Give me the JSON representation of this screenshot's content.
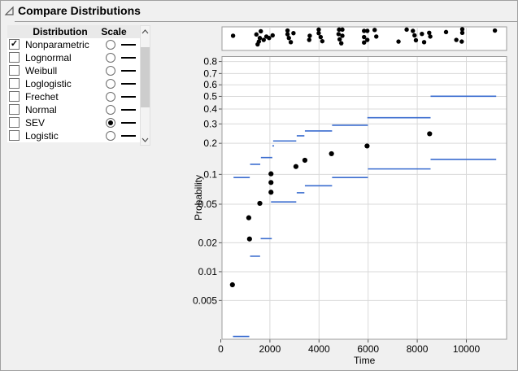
{
  "window": {
    "title": "Compare Distributions"
  },
  "panel": {
    "headers": [
      "Distribution",
      "Scale"
    ],
    "rows": [
      {
        "label": "Nonparametric",
        "checked": true,
        "scale_selected": false
      },
      {
        "label": "Lognormal",
        "checked": false,
        "scale_selected": false
      },
      {
        "label": "Weibull",
        "checked": false,
        "scale_selected": false
      },
      {
        "label": "Loglogistic",
        "checked": false,
        "scale_selected": false
      },
      {
        "label": "Frechet",
        "checked": false,
        "scale_selected": false
      },
      {
        "label": "Normal",
        "checked": false,
        "scale_selected": false
      },
      {
        "label": "SEV",
        "checked": false,
        "scale_selected": true
      },
      {
        "label": "Logistic",
        "checked": false,
        "scale_selected": false
      }
    ],
    "checkmark_glyph": "✓"
  },
  "colors": {
    "accent_blue": "#3a6ccf",
    "point_black": "#000000",
    "grid": "#d9d9d9",
    "frame": "#9b9b9b",
    "tick": "#555555",
    "panel_bg": "#f0f0f0",
    "plot_bg": "#ffffff"
  },
  "chart_data": {
    "type": "scatter",
    "subtype": "nonparametric-probability-plot",
    "xlabel": "Time",
    "ylabel": "Probability",
    "grid": true,
    "x_axis": {
      "min": 0,
      "max": 11700,
      "ticks": [
        0,
        2000,
        4000,
        6000,
        8000,
        10000
      ]
    },
    "y_axis": {
      "scale": "SEV probability",
      "tick_values": [
        0.8,
        0.7,
        0.6,
        0.5,
        0.4,
        0.3,
        0.2,
        0.1,
        0.05,
        0.02,
        0.01,
        0.005
      ],
      "tick_labels": [
        "0.8",
        "0.7",
        "0.6",
        "0.5",
        "0.4",
        "0.3",
        "0.2",
        "0.1",
        "0.05",
        "0.02",
        "0.01",
        "0.005"
      ],
      "min": 0.002,
      "max": 0.84
    },
    "points": [
      [
        474,
        0.0073
      ],
      [
        1140,
        0.0363
      ],
      [
        1170,
        0.0219
      ],
      [
        1590,
        0.051
      ],
      [
        2045,
        0.1013
      ],
      [
        2045,
        0.083
      ],
      [
        2045,
        0.0662
      ],
      [
        3060,
        0.1196
      ],
      [
        3425,
        0.1377
      ],
      [
        4508,
        0.1594
      ],
      [
        5957,
        0.1887
      ],
      [
        8504,
        0.2448
      ]
    ],
    "step_segments_upper": [
      [
        520,
        1180,
        0.093
      ],
      [
        1193,
        1608,
        0.1258
      ],
      [
        1634,
        2099,
        0.1463
      ],
      [
        2100,
        2170,
        0.1893
      ],
      [
        2132,
        3073,
        0.2104
      ],
      [
        3093,
        3404,
        0.2346
      ],
      [
        3425,
        4532,
        0.2599
      ],
      [
        4532,
        5991,
        0.2918
      ],
      [
        5968,
        8543,
        0.3392
      ],
      [
        8543,
        11215,
        0.5013
      ]
    ],
    "step_segments_lower": [
      [
        497,
        1160,
        0.0021
      ],
      [
        1193,
        1601,
        0.0145
      ],
      [
        1624,
        2078,
        0.0221
      ],
      [
        2045,
        3073,
        0.0527
      ],
      [
        3093,
        3404,
        0.0654
      ],
      [
        3425,
        4532,
        0.077
      ],
      [
        4532,
        5991,
        0.093
      ],
      [
        5991,
        8543,
        0.1133
      ],
      [
        8543,
        11215,
        0.1403
      ]
    ],
    "event_strip_points": [
      [
        500,
        0.39
      ],
      [
        1450,
        0.32
      ],
      [
        1630,
        0.15
      ],
      [
        1590,
        0.51
      ],
      [
        1550,
        0.7
      ],
      [
        1500,
        0.85
      ],
      [
        1747,
        0.61
      ],
      [
        1857,
        0.43
      ],
      [
        1967,
        0.51
      ],
      [
        2112,
        0.37
      ],
      [
        2718,
        0.11
      ],
      [
        2718,
        0.31
      ],
      [
        2774,
        0.51
      ],
      [
        2851,
        0.73
      ],
      [
        2960,
        0.25
      ],
      [
        3623,
        0.39
      ],
      [
        3601,
        0.61
      ],
      [
        3988,
        0.06
      ],
      [
        3988,
        0.25
      ],
      [
        4068,
        0.46
      ],
      [
        4134,
        0.68
      ],
      [
        4817,
        0.06
      ],
      [
        4950,
        0.06
      ],
      [
        4796,
        0.3
      ],
      [
        4950,
        0.39
      ],
      [
        4840,
        0.58
      ],
      [
        4907,
        0.79
      ],
      [
        5835,
        0.13
      ],
      [
        5967,
        0.13
      ],
      [
        6266,
        0.08
      ],
      [
        5835,
        0.46
      ],
      [
        5967,
        0.61
      ],
      [
        5835,
        0.75
      ],
      [
        6332,
        0.43
      ],
      [
        7237,
        0.7
      ],
      [
        7569,
        0.06
      ],
      [
        7823,
        0.13
      ],
      [
        7890,
        0.37
      ],
      [
        7945,
        0.63
      ],
      [
        8190,
        0.29
      ],
      [
        8280,
        0.73
      ],
      [
        8487,
        0.23
      ],
      [
        8530,
        0.43
      ],
      [
        9173,
        0.19
      ],
      [
        9591,
        0.61
      ],
      [
        9812,
        0.7
      ],
      [
        9834,
        0.04
      ],
      [
        9834,
        0.23
      ],
      [
        11162,
        0.11
      ]
    ]
  }
}
